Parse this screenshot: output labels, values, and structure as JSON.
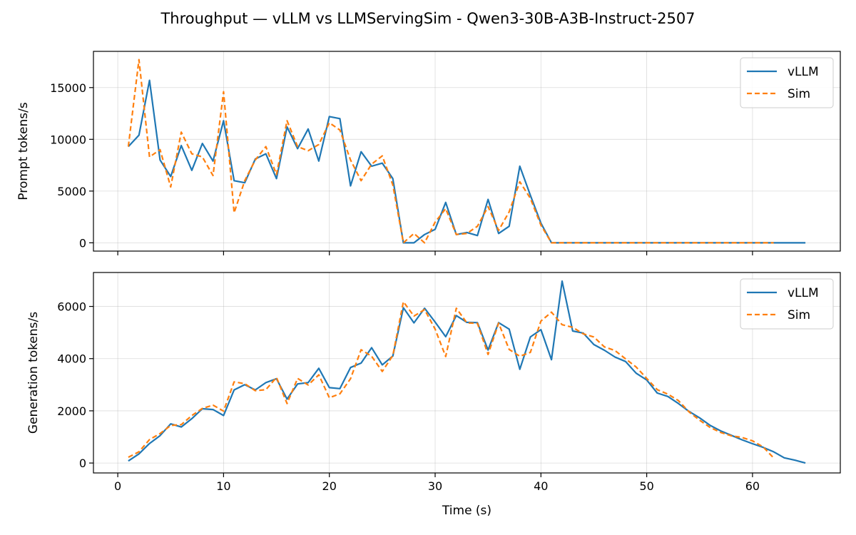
{
  "figure": {
    "title": "Throughput — vLLM vs LLMServingSim - Qwen3-30B-A3B-Instruct-2507"
  },
  "colors": {
    "vllm": "#1f77b4",
    "sim": "#ff7f0e"
  },
  "chart_data": [
    {
      "type": "line",
      "ylabel": "Prompt tokens/s",
      "xlabel": "",
      "xlim": [
        -2.3,
        68.3
      ],
      "ylim": [
        -800,
        18500
      ],
      "xticks": [
        0,
        10,
        20,
        30,
        40,
        50,
        60
      ],
      "yticks": [
        0,
        5000,
        10000,
        15000
      ],
      "show_x_tick_labels": false,
      "grid": true,
      "legend": "top-right",
      "series": [
        {
          "name": "vLLM",
          "style": "solid",
          "x": [
            1,
            2,
            3,
            4,
            5,
            6,
            7,
            8,
            9,
            10,
            11,
            12,
            13,
            14,
            15,
            16,
            17,
            18,
            19,
            20,
            21,
            22,
            23,
            24,
            25,
            26,
            27,
            28,
            29,
            30,
            31,
            32,
            33,
            34,
            35,
            36,
            37,
            38,
            39,
            40,
            41,
            42,
            43,
            44,
            45,
            46,
            47,
            48,
            49,
            50,
            51,
            52,
            53,
            54,
            55,
            56,
            57,
            58,
            59,
            60,
            61,
            62,
            63,
            64,
            65
          ],
          "y": [
            9300,
            10400,
            15700,
            8000,
            6400,
            9400,
            7000,
            9600,
            7900,
            11800,
            6000,
            5800,
            8100,
            8600,
            6200,
            11200,
            9100,
            11000,
            7900,
            12200,
            12000,
            5500,
            8800,
            7400,
            7700,
            6200,
            0,
            0,
            800,
            1300,
            3900,
            800,
            1000,
            700,
            4200,
            900,
            1600,
            7400,
            4600,
            1900,
            0,
            0,
            0,
            0,
            0,
            0,
            0,
            0,
            0,
            0,
            0,
            0,
            0,
            0,
            0,
            0,
            0,
            0,
            0,
            0,
            0,
            0,
            0,
            0,
            0
          ]
        },
        {
          "name": "Sim",
          "style": "dashed",
          "x": [
            1,
            2,
            3,
            4,
            5,
            6,
            7,
            8,
            9,
            10,
            11,
            12,
            13,
            14,
            15,
            16,
            17,
            18,
            19,
            20,
            21,
            22,
            23,
            24,
            25,
            26,
            27,
            28,
            29,
            30,
            31,
            32,
            33,
            34,
            35,
            36,
            37,
            38,
            39,
            40,
            41,
            42,
            43,
            44,
            45,
            46,
            47,
            48,
            49,
            50,
            51,
            52,
            53,
            54,
            55,
            56,
            57,
            58,
            59,
            60,
            61,
            62
          ],
          "y": [
            9300,
            17700,
            8300,
            9000,
            5400,
            10700,
            8600,
            8300,
            6500,
            14600,
            2900,
            6000,
            8000,
            9300,
            6600,
            11800,
            9300,
            8900,
            9500,
            11600,
            10900,
            8000,
            6000,
            7600,
            8400,
            5600,
            0,
            900,
            0,
            2000,
            3300,
            800,
            900,
            1600,
            3500,
            1200,
            3000,
            5900,
            4300,
            1700,
            0,
            0,
            0,
            0,
            0,
            0,
            0,
            0,
            0,
            0,
            0,
            0,
            0,
            0,
            0,
            0,
            0,
            0,
            0,
            0,
            0,
            0
          ]
        }
      ]
    },
    {
      "type": "line",
      "ylabel": "Generation tokens/s",
      "xlabel": "Time (s)",
      "xlim": [
        -2.3,
        68.3
      ],
      "ylim": [
        -380,
        7300
      ],
      "xticks": [
        0,
        10,
        20,
        30,
        40,
        50,
        60
      ],
      "yticks": [
        0,
        2000,
        4000,
        6000
      ],
      "show_x_tick_labels": true,
      "grid": true,
      "legend": "top-right",
      "series": [
        {
          "name": "vLLM",
          "style": "solid",
          "x": [
            1,
            2,
            3,
            4,
            5,
            6,
            7,
            8,
            9,
            10,
            11,
            12,
            13,
            14,
            15,
            16,
            17,
            18,
            19,
            20,
            21,
            22,
            23,
            24,
            25,
            26,
            27,
            28,
            29,
            30,
            31,
            32,
            33,
            34,
            35,
            36,
            37,
            38,
            39,
            40,
            41,
            42,
            43,
            44,
            45,
            46,
            47,
            48,
            49,
            50,
            51,
            52,
            53,
            54,
            55,
            56,
            57,
            58,
            59,
            60,
            61,
            62,
            63,
            64,
            65
          ],
          "y": [
            80,
            350,
            750,
            1050,
            1500,
            1380,
            1700,
            2080,
            2050,
            1820,
            2800,
            3000,
            2800,
            3080,
            3230,
            2450,
            3030,
            3080,
            3630,
            2890,
            2850,
            3660,
            3830,
            4420,
            3760,
            4100,
            5950,
            5370,
            5930,
            5400,
            4840,
            5650,
            5390,
            5380,
            4330,
            5380,
            5130,
            3590,
            4830,
            5110,
            3960,
            6970,
            5060,
            4980,
            4540,
            4320,
            4060,
            3890,
            3440,
            3180,
            2680,
            2550,
            2280,
            1980,
            1730,
            1440,
            1230,
            1060,
            890,
            740,
            600,
            430,
            200,
            110,
            0
          ]
        },
        {
          "name": "Sim",
          "style": "dashed",
          "x": [
            1,
            2,
            3,
            4,
            5,
            6,
            7,
            8,
            9,
            10,
            11,
            12,
            13,
            14,
            15,
            16,
            17,
            18,
            19,
            20,
            21,
            22,
            23,
            24,
            25,
            26,
            27,
            28,
            29,
            30,
            31,
            32,
            33,
            34,
            35,
            36,
            37,
            38,
            39,
            40,
            41,
            42,
            43,
            44,
            45,
            46,
            47,
            48,
            49,
            50,
            51,
            52,
            53,
            54,
            55,
            56,
            57,
            58,
            59,
            60,
            61,
            62
          ],
          "y": [
            220,
            430,
            900,
            1130,
            1440,
            1470,
            1820,
            2090,
            2220,
            1990,
            3110,
            3040,
            2770,
            2810,
            3280,
            2280,
            3240,
            2990,
            3380,
            2500,
            2650,
            3230,
            4340,
            4090,
            3510,
            4120,
            6180,
            5630,
            5880,
            5130,
            4080,
            5930,
            5370,
            5350,
            4160,
            5360,
            4350,
            4090,
            4240,
            5440,
            5780,
            5300,
            5200,
            4950,
            4830,
            4450,
            4310,
            3990,
            3680,
            3240,
            2810,
            2640,
            2390,
            1960,
            1640,
            1360,
            1170,
            1040,
            980,
            850,
            620,
            190
          ]
        }
      ]
    }
  ]
}
